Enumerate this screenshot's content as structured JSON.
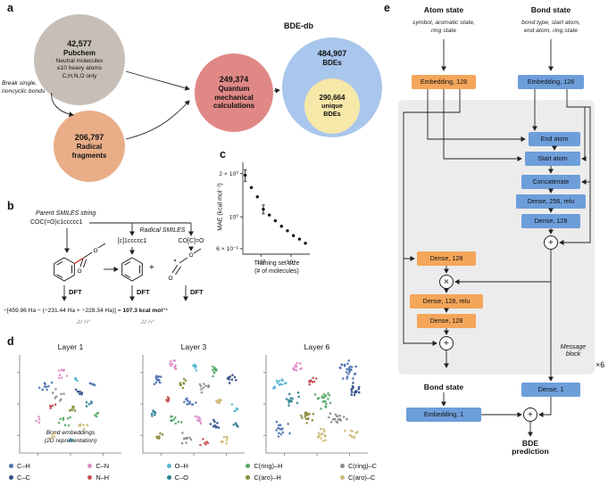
{
  "panel_labels": {
    "a": "a",
    "b": "b",
    "c": "c",
    "d": "d",
    "e": "e"
  },
  "panel_a": {
    "pubchem_count": "42,577",
    "pubchem_name": "Pubchem",
    "pubchem_line1": "Neutral molecules",
    "pubchem_line2": "≤10 heavy atoms",
    "pubchem_line3": "C,H,N,O only",
    "break_note1": "Break single,",
    "break_note2": "noncyclic bonds",
    "radical_count": "206,797",
    "radical_name1": "Radical",
    "radical_name2": "fragments",
    "qm_count": "249,374",
    "qm_name1": "Quantum",
    "qm_name2": "mechanical",
    "qm_name3": "calculations",
    "db_title": "BDE-db",
    "bde_count": "484,907",
    "bde_name": "BDEs",
    "unique_count": "290,664",
    "unique_name1": "unique",
    "unique_name2": "BDEs",
    "colors": {
      "pubchem": "#c7bfb7",
      "radical": "#e9ae88",
      "qm": "#e08886",
      "bde": "#a9c6ec",
      "unique": "#f6e8a8"
    }
  },
  "panel_b": {
    "parent_label": "Parent SMILES string",
    "parent_smiles": "COC(=O)c1ccccc1",
    "radical_label": "Radical SMILES",
    "radical_smiles1": "[c]1ccccc1",
    "radical_smiles2": "CO[C]=O",
    "plus": "+",
    "dft": "DFT",
    "o_label": "O",
    "equation_pre": "−[459.96 Ha − (−231.44 Ha + −228.34 Ha)] = ",
    "equation_result": "107.3 kcal mol⁻¹",
    "dfh_left": "Δf H°",
    "dfh_right": "Δf H°"
  },
  "chart_data": [
    {
      "type": "scatter",
      "title": "",
      "xlabel1": "Training set size",
      "xlabel2": "(# of molecules)",
      "ylabel": "MAE (kcal mol⁻¹)",
      "xscale": "log",
      "yscale": "log",
      "xlim": [
        250,
        42000
      ],
      "ylim": [
        0.55,
        2.4
      ],
      "grid": false,
      "legend_position": "none",
      "points": [
        {
          "x": 300,
          "y": 1.95,
          "err": 0.18
        },
        {
          "x": 480,
          "y": 1.6
        },
        {
          "x": 760,
          "y": 1.38
        },
        {
          "x": 1200,
          "y": 1.13,
          "err": 0.08
        },
        {
          "x": 1900,
          "y": 1.03
        },
        {
          "x": 3000,
          "y": 0.94
        },
        {
          "x": 4800,
          "y": 0.86
        },
        {
          "x": 7600,
          "y": 0.8
        },
        {
          "x": 12000,
          "y": 0.74
        },
        {
          "x": 19000,
          "y": 0.7
        },
        {
          "x": 30000,
          "y": 0.655
        }
      ],
      "yticks": [
        {
          "v": 2.0,
          "label": "2 × 10⁰"
        },
        {
          "v": 1.0,
          "label": "10⁰"
        },
        {
          "v": 0.6,
          "label": "6 × 10⁻¹"
        }
      ],
      "xticks": [
        {
          "v": 1000,
          "label": "10³"
        },
        {
          "v": 10000,
          "label": "10⁴"
        }
      ]
    },
    {
      "type": "scatter",
      "title": "Bond embeddings (2D representation)",
      "description": "t-SNE style 2D bond-embedding maps for message-passing layers; points colored by bond type",
      "layers": [
        {
          "title": "Layer 1",
          "clusters": [
            {
              "c": "CN",
              "x": 0.42,
              "y": 0.18,
              "s": 0.04,
              "n": 8
            },
            {
              "c": "CH",
              "x": 0.25,
              "y": 0.3,
              "s": 0.05,
              "n": 9
            },
            {
              "c": "OH",
              "x": 0.55,
              "y": 0.25,
              "s": 0.03,
              "n": 5
            },
            {
              "c": "CC",
              "x": 0.6,
              "y": 0.38,
              "s": 0.04,
              "n": 7
            },
            {
              "c": "CringC",
              "x": 0.4,
              "y": 0.4,
              "s": 0.05,
              "n": 8
            },
            {
              "c": "NH",
              "x": 0.3,
              "y": 0.52,
              "s": 0.03,
              "n": 5
            },
            {
              "c": "CaroH",
              "x": 0.52,
              "y": 0.55,
              "s": 0.04,
              "n": 7
            },
            {
              "c": "CO",
              "x": 0.68,
              "y": 0.5,
              "s": 0.03,
              "n": 5
            },
            {
              "c": "CringH",
              "x": 0.45,
              "y": 0.68,
              "s": 0.05,
              "n": 8
            },
            {
              "c": "CaroC",
              "x": 0.62,
              "y": 0.7,
              "s": 0.04,
              "n": 6
            },
            {
              "c": "CH",
              "x": 0.72,
              "y": 0.28,
              "s": 0.03,
              "n": 5
            },
            {
              "c": "CN",
              "x": 0.2,
              "y": 0.68,
              "s": 0.03,
              "n": 4
            },
            {
              "c": "CaroC",
              "x": 0.33,
              "y": 0.82,
              "s": 0.03,
              "n": 5
            },
            {
              "c": "CringH",
              "x": 0.75,
              "y": 0.62,
              "s": 0.03,
              "n": 4
            },
            {
              "c": "CO",
              "x": 0.5,
              "y": 0.85,
              "s": 0.03,
              "n": 4
            }
          ]
        },
        {
          "title": "Layer 3",
          "clusters": [
            {
              "c": "CN",
              "x": 0.3,
              "y": 0.1,
              "s": 0.035,
              "n": 10
            },
            {
              "c": "CH",
              "x": 0.15,
              "y": 0.25,
              "s": 0.04,
              "n": 12
            },
            {
              "c": "OH",
              "x": 0.5,
              "y": 0.12,
              "s": 0.03,
              "n": 8
            },
            {
              "c": "CringH",
              "x": 0.7,
              "y": 0.15,
              "s": 0.04,
              "n": 10
            },
            {
              "c": "CC",
              "x": 0.88,
              "y": 0.25,
              "s": 0.035,
              "n": 9
            },
            {
              "c": "CaroH",
              "x": 0.4,
              "y": 0.28,
              "s": 0.035,
              "n": 9
            },
            {
              "c": "CringC",
              "x": 0.6,
              "y": 0.32,
              "s": 0.04,
              "n": 10
            },
            {
              "c": "NH",
              "x": 0.25,
              "y": 0.45,
              "s": 0.03,
              "n": 7
            },
            {
              "c": "CO",
              "x": 0.1,
              "y": 0.6,
              "s": 0.03,
              "n": 7
            },
            {
              "c": "CH",
              "x": 0.45,
              "y": 0.48,
              "s": 0.04,
              "n": 11
            },
            {
              "c": "CaroC",
              "x": 0.75,
              "y": 0.48,
              "s": 0.035,
              "n": 9
            },
            {
              "c": "OH",
              "x": 0.9,
              "y": 0.55,
              "s": 0.03,
              "n": 6
            },
            {
              "c": "CringH",
              "x": 0.3,
              "y": 0.65,
              "s": 0.04,
              "n": 10
            },
            {
              "c": "CN",
              "x": 0.55,
              "y": 0.65,
              "s": 0.03,
              "n": 8
            },
            {
              "c": "CC",
              "x": 0.7,
              "y": 0.7,
              "s": 0.035,
              "n": 9
            },
            {
              "c": "CaroH",
              "x": 0.15,
              "y": 0.82,
              "s": 0.03,
              "n": 7
            },
            {
              "c": "CringC",
              "x": 0.42,
              "y": 0.85,
              "s": 0.035,
              "n": 9
            },
            {
              "c": "NH",
              "x": 0.6,
              "y": 0.88,
              "s": 0.03,
              "n": 6
            },
            {
              "c": "CaroC",
              "x": 0.82,
              "y": 0.85,
              "s": 0.035,
              "n": 8
            },
            {
              "c": "CO",
              "x": 0.92,
              "y": 0.72,
              "s": 0.025,
              "n": 5
            }
          ]
        },
        {
          "title": "Layer 6",
          "clusters": [
            {
              "c": "CH",
              "x": 0.8,
              "y": 0.15,
              "s": 0.07,
              "n": 26
            },
            {
              "c": "CC",
              "x": 0.88,
              "y": 0.35,
              "s": 0.05,
              "n": 16
            },
            {
              "c": "CN",
              "x": 0.3,
              "y": 0.12,
              "s": 0.045,
              "n": 12
            },
            {
              "c": "OH",
              "x": 0.12,
              "y": 0.3,
              "s": 0.05,
              "n": 14
            },
            {
              "c": "CO",
              "x": 0.25,
              "y": 0.45,
              "s": 0.05,
              "n": 14
            },
            {
              "c": "NH",
              "x": 0.45,
              "y": 0.25,
              "s": 0.04,
              "n": 10
            },
            {
              "c": "CringH",
              "x": 0.55,
              "y": 0.45,
              "s": 0.06,
              "n": 20
            },
            {
              "c": "CaroH",
              "x": 0.4,
              "y": 0.62,
              "s": 0.05,
              "n": 16
            },
            {
              "c": "CringC",
              "x": 0.7,
              "y": 0.65,
              "s": 0.06,
              "n": 18
            },
            {
              "c": "CaroC",
              "x": 0.55,
              "y": 0.82,
              "s": 0.05,
              "n": 14
            },
            {
              "c": "CH",
              "x": 0.15,
              "y": 0.75,
              "s": 0.05,
              "n": 14
            },
            {
              "c": "CaroC",
              "x": 0.85,
              "y": 0.8,
              "s": 0.04,
              "n": 10
            }
          ]
        }
      ]
    }
  ],
  "panel_d": {
    "titles": [
      "Layer 1",
      "Layer 3",
      "Layer 6"
    ],
    "note1": "Bond embeddings",
    "note2": "(2D representation)",
    "colors": {
      "CH": "#4c72b0",
      "CC": "#2e4d87",
      "CN": "#dd8ac6",
      "NH": "#c44e52",
      "OH": "#56b4d3",
      "CO": "#2d7f93",
      "CringH": "#55a868",
      "CaroH": "#8a8a3b",
      "CringC": "#8c8c8c",
      "CaroC": "#ccb974"
    },
    "legend": [
      {
        "key": "CH",
        "label": "C–H"
      },
      {
        "key": "CC",
        "label": "C–C"
      },
      {
        "key": "CN",
        "label": "C–N"
      },
      {
        "key": "NH",
        "label": "N–H"
      },
      {
        "key": "OH",
        "label": "O–H"
      },
      {
        "key": "CO",
        "label": "C–O"
      },
      {
        "key": "CringH",
        "label": "C(ring)–H"
      },
      {
        "key": "CaroH",
        "label": "C(aro)–H"
      },
      {
        "key": "CringC",
        "label": "C(ring)–C"
      },
      {
        "key": "CaroC",
        "label": "C(aro)–C"
      }
    ]
  },
  "panel_e": {
    "atom_header": "Atom state",
    "bond_header": "Bond state",
    "atom_desc1": "symbol, aromatic state,",
    "atom_desc2": "ring state",
    "bond_desc1": "bond type, start atom,",
    "bond_desc2": "end atom, ring state",
    "atom_embedding": "Embedding, 128",
    "bond_embedding": "Embedding, 128",
    "end_atom": "End atom",
    "start_atom": "Start atom",
    "concatenate": "Concatenate",
    "dense_256": "Dense, 256, relu",
    "dense_128_bond": "Dense, 128",
    "dense_128_atom": "Dense, 128",
    "dense_128_relu": "Dense, 128, relu",
    "dense_128_atom2": "Dense, 128",
    "message_block": "Message block",
    "times6": "×6",
    "bond_state_bottom": "Bond state",
    "embedding_1": "Embedding, 1",
    "dense_1": "Dense, 1",
    "bde_pred1": "BDE",
    "bde_pred2": "prediction",
    "plus": "+",
    "times": "×",
    "colors": {
      "orange": "#f4a65b",
      "blue": "#6d9eda",
      "gray": "#ececec"
    }
  }
}
